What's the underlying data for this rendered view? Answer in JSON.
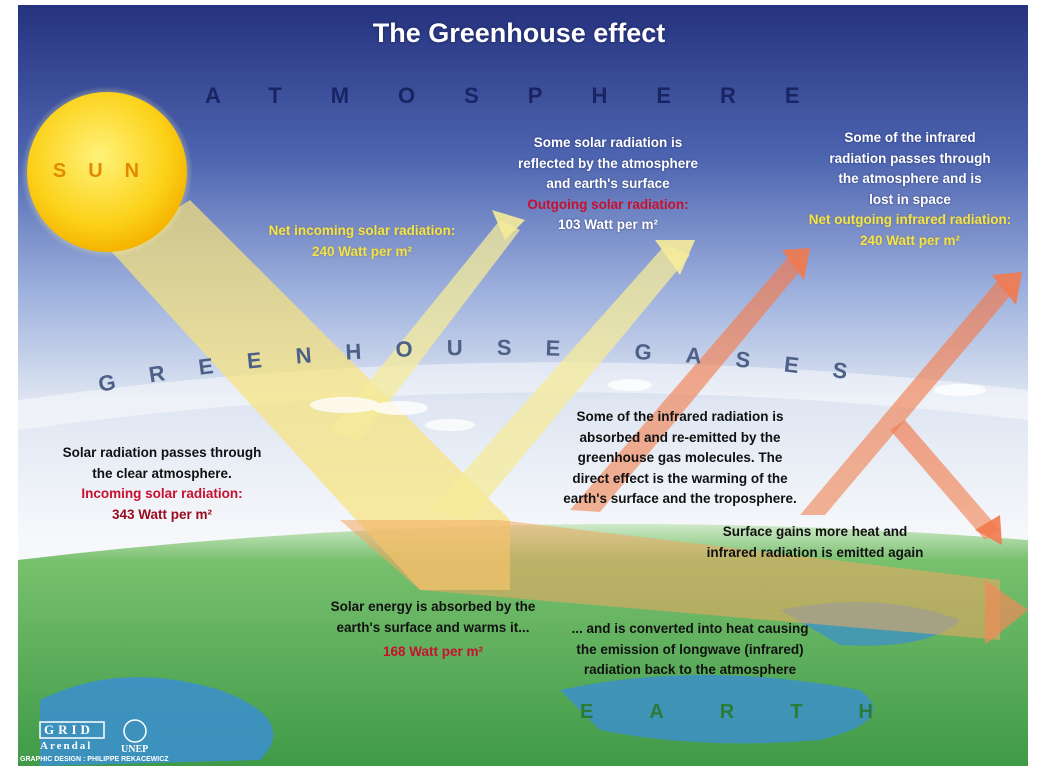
{
  "title": "The Greenhouse effect",
  "labels": {
    "atmosphere": "ATMOSPHERE",
    "sun": "SUN",
    "greenhouse_gases": "GREENHOUSE GASES",
    "earth": "EARTH"
  },
  "net_incoming": {
    "heading": "Net incoming solar radiation:",
    "value": "240 Watt per m²"
  },
  "reflected": {
    "lines": [
      "Some solar radiation is",
      "reflected by the atmosphere",
      "and earth's surface"
    ],
    "heading": "Outgoing solar radiation:",
    "value": "103 Watt per m²"
  },
  "infrared_lost": {
    "lines": [
      "Some of the infrared",
      "radiation passes through",
      "the atmosphere and is",
      "lost in space"
    ],
    "heading": "Net outgoing infrared radiation:",
    "value": "240 Watt per m²"
  },
  "incoming": {
    "lines": [
      "Solar radiation passes through",
      "the clear atmosphere."
    ],
    "heading": "Incoming solar radiation:",
    "value": "343 Watt per m²"
  },
  "reemitted": {
    "lines": [
      "Some of the infrared radiation is",
      "absorbed and re-emitted by the",
      "greenhouse gas molecules. The",
      "direct effect is the warming of the",
      "earth's surface and the troposphere."
    ]
  },
  "surface_gains": {
    "lines": [
      "Surface gains more heat and",
      "infrared radiation is emitted again"
    ]
  },
  "absorbed": {
    "lines": [
      "Solar energy is absorbed by the",
      "earth's surface and warms it..."
    ],
    "value": "168 Watt per m²"
  },
  "converted": {
    "lines": [
      "... and is converted into heat causing",
      "the emission of longwave (infrared)",
      "radiation back to the atmosphere"
    ]
  },
  "credits": {
    "grid": "GRID",
    "arendal": "Arendal",
    "unep": "UNEP",
    "design": "GRAPHIC DESIGN : PHILIPPE REKACEWICZ"
  }
}
